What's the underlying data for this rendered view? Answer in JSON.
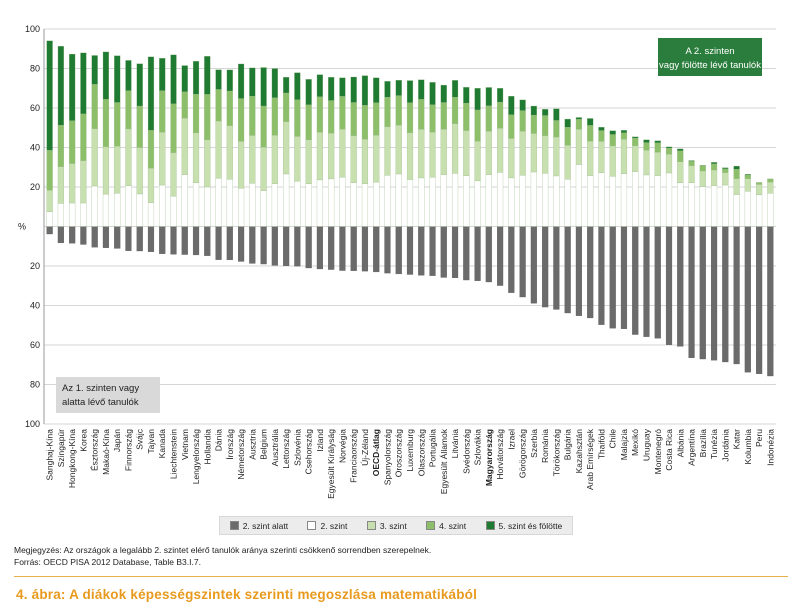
{
  "chart_data": {
    "type": "bar",
    "stacked": true,
    "diverging": true,
    "ylabel": "%",
    "ylim": [
      -100,
      100
    ],
    "ytick_labels": [
      "100",
      "80",
      "60",
      "40",
      "20",
      "",
      "20",
      "40",
      "60",
      "80",
      "100"
    ],
    "ytick_values": [
      100,
      80,
      60,
      40,
      20,
      0,
      -20,
      -40,
      -60,
      -80,
      -100
    ],
    "grid": true,
    "box_upper": "A 2. szinten vagy fölötte lévő tanulók",
    "box_lower": "Az 1. szinten vagy alatta lévő tanulók",
    "categories": [
      "Sanghaj-Kína",
      "Szingapúr",
      "Hongkong-Kína",
      "Korea",
      "Észtország",
      "Makaó-Kína",
      "Japán",
      "Finnország",
      "Svájc",
      "Tajvan",
      "Kanada",
      "Liechtenstein",
      "Vietnam",
      "Lengyelország",
      "Hollandia",
      "Dánia",
      "Írország",
      "Németország",
      "Ausztria",
      "Belgium",
      "Ausztrália",
      "Lettország",
      "Szlovénia",
      "Csehország",
      "Izland",
      "Egyesült Királyság",
      "Norvégia",
      "Franciaország",
      "Új-Zéland",
      "OECD-átlag",
      "Spanyolország",
      "Oroszország",
      "Luxemburg",
      "Olaszország",
      "Portugália",
      "Egyesült Államok",
      "Litvánia",
      "Svédország",
      "Szlovákia",
      "Magyarország",
      "Horvátország",
      "Izrael",
      "Görögország",
      "Szerbia",
      "Románia",
      "Törökország",
      "Bulgária",
      "Kazahsztán",
      "Arab Emírségek",
      "Thaiföld",
      "Chile",
      "Malajzia",
      "Mexikó",
      "Uruguay",
      "Montenegró",
      "Costa Rica",
      "Albánia",
      "Argentína",
      "Brazília",
      "Tunézia",
      "Jordánia",
      "Katar",
      "Kolumbia",
      "Peru",
      "Indonézia"
    ],
    "bold_categories": [
      "OECD-átlag",
      "Magyarország"
    ],
    "series": [
      {
        "name": "2. szint alatt",
        "color": "#6b6b6b",
        "values": [
          3.8,
          8.3,
          8.5,
          9.1,
          10.5,
          10.8,
          11.1,
          12.3,
          12.4,
          12.8,
          13.8,
          14.1,
          14.2,
          14.4,
          14.8,
          16.8,
          16.9,
          17.7,
          18.7,
          19.0,
          19.7,
          19.9,
          20.1,
          21.0,
          21.5,
          21.8,
          22.3,
          22.4,
          22.6,
          23.0,
          23.6,
          24.0,
          24.3,
          24.7,
          24.9,
          25.8,
          26.0,
          27.1,
          27.5,
          28.1,
          29.9,
          33.5,
          35.7,
          38.9,
          40.8,
          42.0,
          43.8,
          45.2,
          46.3,
          49.7,
          51.5,
          51.8,
          54.7,
          55.8,
          56.6,
          59.9,
          60.7,
          66.5,
          67.1,
          67.7,
          68.6,
          69.6,
          73.8,
          74.6,
          75.7
        ]
      },
      {
        "name": "2. szint",
        "color": "#ffffff",
        "values": [
          7.5,
          11.7,
          11.9,
          11.9,
          20.5,
          16.4,
          16.9,
          20.6,
          16.5,
          12.1,
          21.0,
          15.4,
          26.3,
          22.1,
          20.0,
          24.4,
          23.9,
          19.4,
          21.9,
          18.2,
          21.6,
          26.6,
          23.0,
          21.7,
          23.6,
          24.1,
          25.0,
          22.2,
          21.6,
          22.5,
          26.0,
          26.6,
          23.8,
          24.6,
          25.0,
          26.3,
          26.9,
          25.7,
          23.1,
          26.3,
          27.4,
          24.6,
          26.0,
          27.6,
          26.9,
          25.6,
          23.9,
          31.4,
          25.8,
          27.3,
          25.4,
          26.7,
          27.8,
          26.1,
          25.8,
          27.1,
          22.2,
          22.2,
          20.2,
          20.6,
          21.0,
          16.2,
          17.8,
          16.1,
          16.8
        ]
      },
      {
        "name": "3. szint",
        "color": "#c8e0b0",
        "values": [
          10.9,
          18.6,
          20.0,
          21.4,
          29.0,
          24.0,
          23.7,
          28.8,
          23.5,
          17.4,
          26.8,
          22.0,
          28.6,
          25.3,
          23.9,
          29.0,
          27.2,
          23.7,
          24.2,
          22.0,
          24.6,
          26.5,
          22.6,
          22.2,
          24.1,
          23.2,
          24.3,
          23.8,
          22.6,
          23.7,
          24.5,
          24.7,
          23.7,
          24.6,
          22.8,
          23.0,
          25.2,
          22.9,
          20.1,
          22.0,
          22.3,
          20.0,
          22.2,
          19.5,
          19.1,
          19.7,
          17.2,
          17.8,
          17.4,
          15.8,
          15.4,
          17.5,
          13.1,
          12.5,
          11.8,
          9.5,
          10.6,
          8.5,
          7.9,
          8.0,
          6.3,
          8.0,
          6.4,
          5.2,
          5.7
        ]
      },
      {
        "name": "4. szint",
        "color": "#8dbf6a",
        "values": [
          20.2,
          21.0,
          21.7,
          23.7,
          22.5,
          24.0,
          22.2,
          19.4,
          21.0,
          19.2,
          21.0,
          24.7,
          13.3,
          19.6,
          23.0,
          16.0,
          17.5,
          21.7,
          19.9,
          20.8,
          19.0,
          14.5,
          18.6,
          17.7,
          18.0,
          16.5,
          16.6,
          16.8,
          17.2,
          16.5,
          15.0,
          15.0,
          15.2,
          15.2,
          13.9,
          13.5,
          13.4,
          13.9,
          15.8,
          12.8,
          13.3,
          12.0,
          10.5,
          9.3,
          10.2,
          8.4,
          9.2,
          5.1,
          8.0,
          5.5,
          5.8,
          3.2,
          3.9,
          3.9,
          4.8,
          3.1,
          5.5,
          2.3,
          2.7,
          3.1,
          1.9,
          4.8,
          1.8,
          0.8,
          1.5
        ]
      },
      {
        "name": "5. szint és fölötte",
        "color": "#1f7a32",
        "values": [
          55.4,
          40.0,
          33.7,
          30.9,
          14.6,
          24.0,
          23.7,
          15.3,
          21.4,
          37.2,
          16.4,
          24.8,
          13.3,
          16.7,
          19.3,
          10.0,
          10.7,
          17.5,
          14.3,
          19.5,
          14.8,
          8.0,
          13.7,
          12.9,
          11.2,
          11.8,
          9.4,
          12.9,
          15.0,
          12.6,
          8.0,
          7.8,
          11.2,
          9.9,
          11.3,
          8.8,
          8.5,
          8.0,
          11.0,
          9.3,
          7.0,
          9.4,
          5.4,
          4.6,
          3.2,
          5.9,
          4.1,
          0.9,
          3.5,
          1.7,
          1.9,
          1.3,
          0.6,
          1.4,
          1.0,
          0.6,
          1.0,
          0.4,
          0.2,
          0.8,
          0.6,
          1.6,
          0.4,
          0.2,
          0.1
        ]
      }
    ]
  },
  "footer": {
    "note": "Megjegyzés: Az országok a legalább 2. szintet elérő tanulók aránya szerinti csökkenő sorrendben szerepelnek.",
    "source": "Forrás: OECD PISA 2012 Database, Table B3.I.7.",
    "caption": "4. ábra: A diákok képességszintek szerinti megoszlása matematikából"
  }
}
